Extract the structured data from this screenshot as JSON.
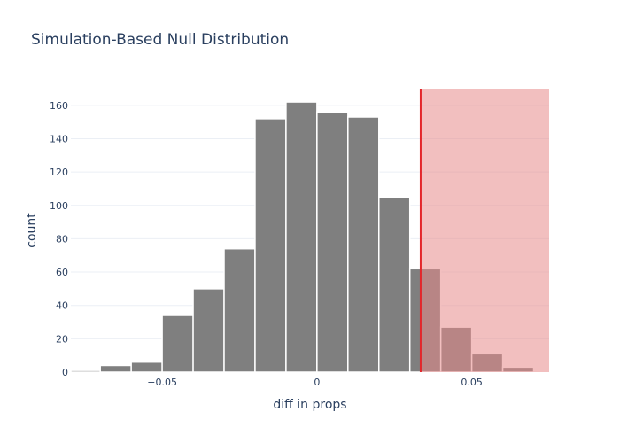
{
  "chart_data": {
    "type": "bar",
    "title": "Simulation-Based Null Distribution",
    "xlabel": "diff in props",
    "ylabel": "count",
    "bin_width": 0.01,
    "bins": [
      {
        "x0": -0.08,
        "x1": -0.07,
        "count": 1
      },
      {
        "x0": -0.07,
        "x1": -0.06,
        "count": 4
      },
      {
        "x0": -0.06,
        "x1": -0.05,
        "count": 6
      },
      {
        "x0": -0.05,
        "x1": -0.04,
        "count": 34
      },
      {
        "x0": -0.04,
        "x1": -0.03,
        "count": 50
      },
      {
        "x0": -0.03,
        "x1": -0.02,
        "count": 74
      },
      {
        "x0": -0.02,
        "x1": -0.01,
        "count": 152
      },
      {
        "x0": -0.01,
        "x1": 0.0,
        "count": 162
      },
      {
        "x0": 0.0,
        "x1": 0.01,
        "count": 156
      },
      {
        "x0": 0.01,
        "x1": 0.02,
        "count": 153
      },
      {
        "x0": 0.02,
        "x1": 0.03,
        "count": 105
      },
      {
        "x0": 0.03,
        "x1": 0.04,
        "count": 62
      },
      {
        "x0": 0.04,
        "x1": 0.05,
        "count": 27
      },
      {
        "x0": 0.05,
        "x1": 0.06,
        "count": 11
      },
      {
        "x0": 0.06,
        "x1": 0.07,
        "count": 3
      }
    ],
    "observed_stat": 0.0335,
    "shade_region": {
      "from": 0.0335,
      "to": 0.075
    },
    "xlim": [
      -0.0795,
      0.075
    ],
    "ylim": [
      0,
      170
    ],
    "xticks": [
      {
        "value": -0.05,
        "label": "−0.05"
      },
      {
        "value": 0,
        "label": "0"
      },
      {
        "value": 0.05,
        "label": "0.05"
      }
    ],
    "yticks": [
      {
        "value": 0,
        "label": "0"
      },
      {
        "value": 20,
        "label": "20"
      },
      {
        "value": 40,
        "label": "40"
      },
      {
        "value": 60,
        "label": "60"
      },
      {
        "value": 80,
        "label": "80"
      },
      {
        "value": 100,
        "label": "100"
      },
      {
        "value": 120,
        "label": "120"
      },
      {
        "value": 140,
        "label": "140"
      },
      {
        "value": 160,
        "label": "160"
      }
    ],
    "colors": {
      "bar": "#7f7f7f",
      "bar_outline": "#ffffff",
      "line": "#e3262b",
      "shade": "#e78a8a",
      "text": "#2a3f5f",
      "grid": "#ebeff5"
    }
  }
}
